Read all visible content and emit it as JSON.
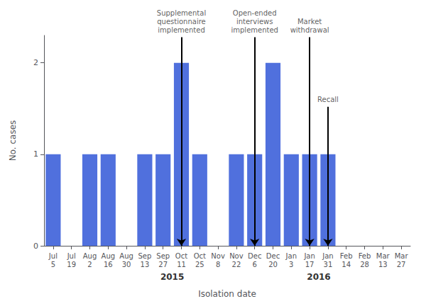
{
  "chart_data": {
    "type": "bar",
    "categories": [
      "Jul\n5",
      "Jul\n19",
      "Aug\n2",
      "Aug\n16",
      "Aug\n30",
      "Sep\n13",
      "Sep\n27",
      "Oct\n11",
      "Oct\n25",
      "Nov\n8",
      "Nov\n22",
      "Dec\n6",
      "Dec\n20",
      "Jan\n3",
      "Jan\n17",
      "Jan\n31",
      "Feb\n14",
      "Feb\n28",
      "Mar\n13",
      "Mar\n27"
    ],
    "values": [
      1,
      0,
      1,
      1,
      0,
      1,
      1,
      2,
      1,
      0,
      1,
      1,
      2,
      1,
      1,
      1,
      0,
      0,
      0,
      0
    ],
    "xlabel": "Isolation date",
    "ylabel": "No. cases",
    "ylim": [
      0,
      2.3
    ],
    "yticks": [
      0,
      1,
      2
    ],
    "grid": false,
    "year_labels": [
      {
        "text": "2015",
        "x": 6.5
      },
      {
        "text": "2016",
        "x": 14.5
      }
    ],
    "annotations": [
      {
        "text": "Supplemental\nquestionnaire\nimplemented",
        "x": "Oct\n11",
        "y_top": 2.28,
        "y_bottom": 0.0,
        "color": "black"
      },
      {
        "text": "Open-ended\ninterviews\nimplemented",
        "x": "Dec\n6",
        "y_top": 2.28,
        "y_bottom": 0.0,
        "color": "black"
      },
      {
        "text": "Market\nwithdrawal",
        "x": "Jan\n17",
        "y_top": 2.28,
        "y_bottom": 0.0,
        "color": "black"
      },
      {
        "text": "Recall",
        "x": "Jan\n31",
        "y_top": 1.52,
        "y_bottom": 0.0,
        "color": "black"
      }
    ]
  }
}
